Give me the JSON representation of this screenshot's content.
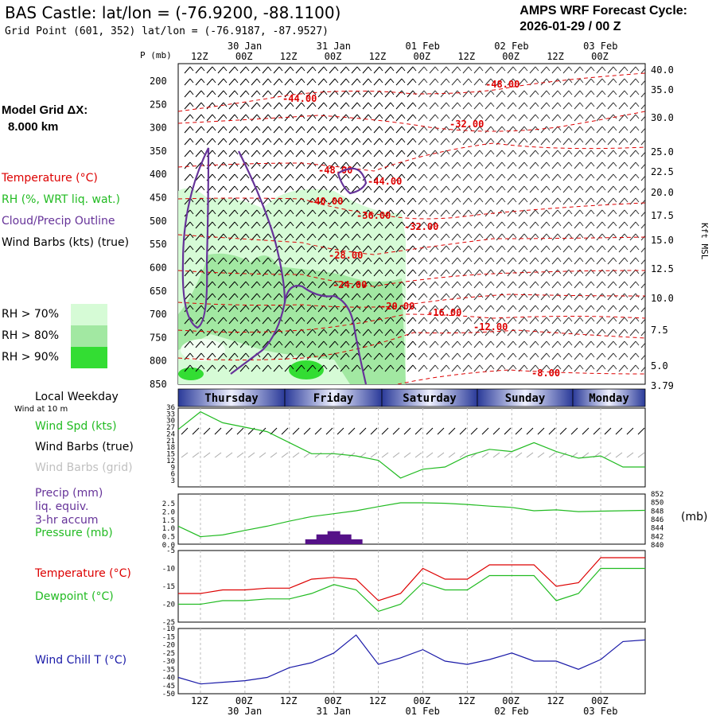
{
  "header": {
    "title": "BAS Castle:  lat/lon = (-76.9200, -88.1100)",
    "subtitle": "Grid Point (601, 352) lat/lon = (-76.9187, -87.9527)",
    "cycle_line1": "AMPS WRF Forecast Cycle:",
    "cycle_line2": "2026-01-29 / 00  Z"
  },
  "legend": {
    "grid_label": "Model Grid ΔX:",
    "grid_value": "8.000 km",
    "temperature": "Temperature (°C)",
    "rh": "RH (%, WRT liq. wat.)",
    "cloud": "Cloud/Precip Outline",
    "wind": "Wind Barbs (kts) (true)",
    "rh70": "RH > 70%",
    "rh80": "RH > 80%",
    "rh90": "RH > 90%",
    "colors": {
      "temperature": "#dd0000",
      "rh": "#22bb22",
      "cloud": "#663399",
      "rh70": "#d6fbd6",
      "rh80": "#a2e8a2",
      "rh90": "#33dd33"
    }
  },
  "time_axis": {
    "top_hour_labels": [
      "12Z",
      "00Z",
      "12Z",
      "00Z",
      "12Z",
      "00Z",
      "12Z",
      "00Z",
      "12Z",
      "00Z"
    ],
    "top_date_labels": [
      "30 Jan",
      "31 Jan",
      "01 Feb",
      "02 Feb",
      "03 Feb"
    ],
    "bottom_hour_labels": [
      "12Z",
      "00Z",
      "12Z",
      "00Z",
      "12Z",
      "00Z",
      "12Z",
      "00Z",
      "12Z",
      "00Z"
    ],
    "bottom_date_labels": [
      "30 Jan",
      "31 Jan",
      "01 Feb",
      "02 Feb",
      "03 Feb"
    ],
    "weekday_title": "Local Weekday",
    "days": [
      "Thursday",
      "Friday",
      "Saturday",
      "Sunday",
      "Monday"
    ]
  },
  "panel_labels": {
    "wind_at": "Wind at 10 m",
    "wind_spd": "Wind Spd (kts)",
    "wind_barbs_true": "Wind Barbs (true)",
    "wind_barbs_grid": "Wind Barbs (grid)",
    "precip1": "Precip (mm)",
    "precip2": "liq. equiv.",
    "precip3": "3-hr accum",
    "pressure": "Pressure (mb)",
    "pressure_unit": "(mb)",
    "temperature": "Temperature (°C)",
    "dewpoint": "Dewpoint (°C)",
    "windchill": "Wind Chill T (°C)"
  },
  "chart_data": [
    {
      "type": "heatmap",
      "title": "",
      "ylabel": "P (mb)",
      "y2label": "Kft MSL",
      "pressure_ticks": [
        200,
        250,
        300,
        350,
        400,
        450,
        500,
        550,
        600,
        650,
        700,
        750,
        800,
        850
      ],
      "kft_ticks": [
        "40.0",
        "35.0",
        "30.0",
        "25.0",
        "22.5",
        "20.0",
        "17.5",
        "15.0",
        "12.5",
        "10.0",
        "7.5",
        "5.0",
        "3.79"
      ],
      "temperature_contour_labels": [
        "-48.00",
        "-44.00",
        "-32.00",
        "-48.00",
        "-44.00",
        "-40.00",
        "-36.00",
        "-32.00",
        "-28.00",
        "-24.00",
        "-20.00",
        "-16.00",
        "-12.00",
        "-8.00"
      ]
    },
    {
      "type": "line",
      "title": "",
      "ylabel": "Wind Spd (kts)",
      "y_ticks": [
        "36",
        "33",
        "30",
        "27",
        "24",
        "21",
        "18",
        "15",
        "12",
        "9",
        "6",
        "3"
      ],
      "x_hours": [
        0,
        6,
        12,
        18,
        24,
        30,
        36,
        42,
        48,
        54,
        60,
        66,
        72,
        78,
        84,
        90,
        96,
        102,
        108,
        114,
        120,
        126
      ],
      "series": [
        {
          "name": "Wind Spd (kts)",
          "color": "#22bb22",
          "values": [
            26,
            34,
            29,
            27,
            25,
            20,
            15,
            15,
            14,
            12,
            4,
            8,
            9,
            14,
            17,
            16,
            20,
            16,
            13,
            14,
            9,
            9
          ]
        }
      ]
    },
    {
      "type": "bar",
      "title": "",
      "y_ticks": [
        "2.5",
        "2.0",
        "1.5",
        "1.0",
        "0.5",
        "0.0"
      ],
      "y2_ticks": [
        "852",
        "850",
        "848",
        "846",
        "844",
        "842",
        "840"
      ],
      "series": [
        {
          "name": "Precip (mm)",
          "color": "#551188",
          "x_hours": [
            36,
            39,
            42,
            45,
            48
          ],
          "values": [
            0.3,
            0.6,
            0.8,
            0.6,
            0.3
          ]
        },
        {
          "name": "Pressure (mb)",
          "color": "#22bb22",
          "x_hours": [
            0,
            6,
            12,
            18,
            24,
            30,
            36,
            42,
            48,
            54,
            60,
            66,
            72,
            78,
            84,
            90,
            96,
            102,
            108,
            114,
            120,
            126
          ],
          "values": [
            844.3,
            841.8,
            842.2,
            843.3,
            844.3,
            845.5,
            846.6,
            847.3,
            848.0,
            849.0,
            849.9,
            849.9,
            849.8,
            849.5,
            849.1,
            848.8,
            848.0,
            848.2,
            847.8,
            847.9,
            848.0,
            848.1
          ]
        }
      ]
    },
    {
      "type": "line",
      "title": "",
      "y_ticks": [
        "-5",
        "-10",
        "-15",
        "-20",
        "-25"
      ],
      "x_hours": [
        0,
        6,
        12,
        18,
        24,
        30,
        36,
        42,
        48,
        54,
        60,
        66,
        72,
        78,
        84,
        90,
        96,
        102,
        108,
        114,
        120,
        126
      ],
      "series": [
        {
          "name": "Temperature (°C)",
          "color": "#dd0000",
          "values": [
            -17,
            -17,
            -16,
            -16,
            -15.5,
            -15.5,
            -13,
            -12.5,
            -13,
            -19,
            -17,
            -10,
            -13,
            -13,
            -9,
            -9,
            -9,
            -15,
            -14,
            -7,
            -7,
            -7
          ]
        },
        {
          "name": "Dewpoint (°C)",
          "color": "#22bb22",
          "values": [
            -20,
            -20,
            -19,
            -19,
            -18.5,
            -18.5,
            -17,
            -14.5,
            -16,
            -22,
            -20,
            -14,
            -16,
            -16,
            -12,
            -12,
            -12,
            -19,
            -17,
            -10,
            -10,
            -10
          ]
        }
      ]
    },
    {
      "type": "line",
      "title": "",
      "y_ticks": [
        "-10",
        "-15",
        "-20",
        "-25",
        "-30",
        "-35",
        "-40",
        "-45",
        "-50"
      ],
      "x_hours": [
        0,
        6,
        12,
        18,
        24,
        30,
        36,
        42,
        48,
        54,
        60,
        66,
        72,
        78,
        84,
        90,
        96,
        102,
        108,
        114,
        120,
        126
      ],
      "series": [
        {
          "name": "Wind Chill T (°C)",
          "color": "#1a1aa8",
          "values": [
            -40,
            -44,
            -43,
            -42,
            -40,
            -34,
            -31,
            -25,
            -14,
            -32,
            -28,
            -23,
            -30,
            -32,
            -29,
            -25,
            -30,
            -30,
            -35,
            -29,
            -18,
            -17
          ]
        }
      ]
    }
  ]
}
